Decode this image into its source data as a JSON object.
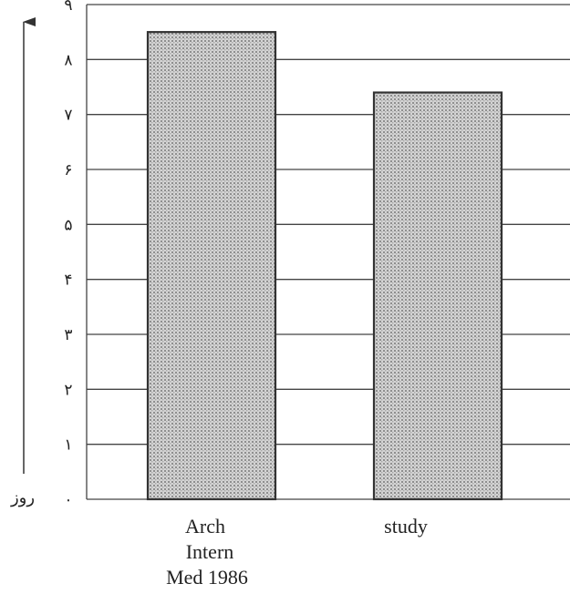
{
  "chart_data": {
    "type": "bar",
    "categories": [
      [
        "Arch",
        "Intern",
        "Med 1986"
      ],
      [
        "study"
      ]
    ],
    "values": [
      8.5,
      7.4
    ],
    "ylabel": "روز",
    "ylim": [
      0,
      9
    ],
    "yticks": [
      "۰",
      "۱",
      "۲",
      "۳",
      "۴",
      "۵",
      "۶",
      "۷",
      "۸",
      "۹"
    ],
    "grid": true,
    "colors": {
      "bar_fill": "#c8c8c8",
      "bar_dot": "#8a8a8a",
      "line": "#333333"
    }
  }
}
